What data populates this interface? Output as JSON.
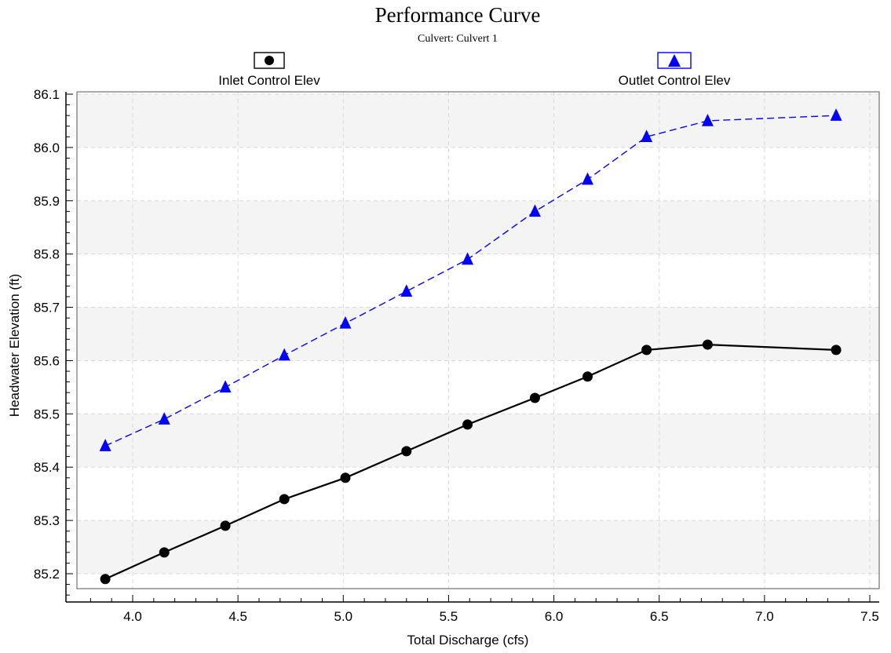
{
  "chart_data": {
    "type": "line",
    "title": "Performance Curve",
    "subtitle": "Culvert: Culvert 1",
    "xlabel": "Total Discharge (cfs)",
    "ylabel": "Headwater Elevation (ft)",
    "xlim": [
      3.75,
      7.5
    ],
    "ylim": [
      85.15,
      86.1
    ],
    "xticks": [
      "4.0",
      "4.5",
      "5.0",
      "5.5",
      "6.0",
      "6.5",
      "7.0",
      "7.5"
    ],
    "yticks": [
      "85.2",
      "85.3",
      "85.4",
      "85.5",
      "85.6",
      "85.7",
      "85.8",
      "85.9",
      "86.0",
      "86.1"
    ],
    "grid": true,
    "legend_position": "top",
    "x": [
      3.87,
      4.15,
      4.44,
      4.72,
      5.01,
      5.3,
      5.59,
      5.91,
      6.16,
      6.44,
      6.73,
      7.34
    ],
    "series": [
      {
        "name": "Inlet Control Elev",
        "color": "#000000",
        "marker": "circle",
        "line_style": "solid",
        "values": [
          85.19,
          85.24,
          85.29,
          85.34,
          85.38,
          85.43,
          85.48,
          85.53,
          85.57,
          85.62,
          85.63,
          85.62
        ]
      },
      {
        "name": "Outlet Control Elev",
        "color": "#0000ff",
        "marker": "triangle",
        "line_style": "dashed",
        "values": [
          85.44,
          85.49,
          85.55,
          85.61,
          85.67,
          85.73,
          85.79,
          85.88,
          85.94,
          86.02,
          86.05,
          86.06
        ]
      }
    ]
  }
}
